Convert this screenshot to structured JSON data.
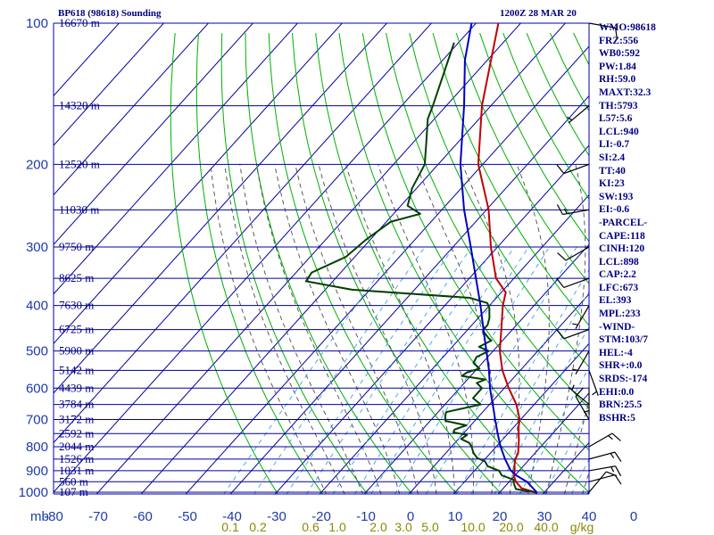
{
  "header": {
    "title": "BP618 (98618) Sounding",
    "time": "1200Z 28 MAR 20"
  },
  "indices": [
    "WMO:98618",
    "FRZ:556",
    "WB0:592",
    "PW:1.84",
    "RH:59.0",
    "MAXT:32.3",
    "TH:5793",
    "L57:5.6",
    "LCL:940",
    "LI:-0.7",
    "SI:2.4",
    "TT:40",
    "KI:23",
    "SW:193",
    "EI:-0.6",
    "-PARCEL-",
    "CAPE:118",
    "CINH:120",
    "LCL:898",
    "CAP:2.2",
    "LFC:673",
    "EL:393",
    "MPL:233",
    "-WIND-",
    "STM:103/7",
    "HEL:-4",
    "SHR+:0.0",
    "SRDS:-174",
    "EHI:0.0",
    "BRN:25.5",
    "BSHR:5"
  ],
  "colors": {
    "isobar": "#0000a0",
    "isotherm": "#0000a0",
    "dry_adiabat": "#00b000",
    "moist_adiabat": "#4a4a4a",
    "mixing_ratio": "#3aa0e0",
    "temperature": "#c00000",
    "dewpoint": "#004000",
    "parcel": "#0000c0",
    "wind_barb": "#000000",
    "axis_text": "#1f3aa8",
    "height_text": "#000080",
    "mixing_ratio_text": "#8a8a00"
  },
  "chart_data": {
    "type": "line",
    "title": "",
    "xlabel": "",
    "ylabel": "mb",
    "x_ticks": [
      "-80",
      "-70",
      "-60",
      "-50",
      "-40",
      "-30",
      "-20",
      "-10",
      "0",
      "10",
      "20",
      "30",
      "40",
      "0"
    ],
    "xlim": [
      -80,
      40
    ],
    "y_ticks": [
      "100",
      "200",
      "300",
      "400",
      "500",
      "600",
      "700",
      "800",
      "900",
      "1000"
    ],
    "ylim": [
      1000,
      100
    ],
    "y_scale": "log",
    "grid": true,
    "height_labels": [
      {
        "p": 100,
        "text": "16670 m"
      },
      {
        "p": 150,
        "text": "14320 m"
      },
      {
        "p": 200,
        "text": "12520 m"
      },
      {
        "p": 250,
        "text": "11030 m"
      },
      {
        "p": 300,
        "text": "9750 m"
      },
      {
        "p": 350,
        "text": "8625 m"
      },
      {
        "p": 400,
        "text": "7630 m"
      },
      {
        "p": 450,
        "text": "6725 m"
      },
      {
        "p": 500,
        "text": "5900 m"
      },
      {
        "p": 550,
        "text": "5142 m"
      },
      {
        "p": 600,
        "text": "4439 m"
      },
      {
        "p": 650,
        "text": "3784 m"
      },
      {
        "p": 700,
        "text": "3172 m"
      },
      {
        "p": 750,
        "text": "2592 m"
      },
      {
        "p": 800,
        "text": "2044 m"
      },
      {
        "p": 850,
        "text": "1526 m"
      },
      {
        "p": 900,
        "text": "1031 m"
      },
      {
        "p": 950,
        "text": "560 m"
      },
      {
        "p": 1000,
        "text": "107 m"
      }
    ],
    "mixing_ratio_labels": [
      "0.1",
      "0.2",
      "0.6",
      "1.0",
      "2.0",
      "3.0",
      "5.0",
      "10.0",
      "20.0",
      "40.0",
      "g/kg"
    ],
    "series": [
      {
        "key": "temperature",
        "points": [
          [
            1003,
            28.5
          ],
          [
            980,
            24
          ],
          [
            950,
            21.5
          ],
          [
            925,
            20
          ],
          [
            900,
            19
          ],
          [
            875,
            17.8
          ],
          [
            850,
            16.8
          ],
          [
            825,
            16.2
          ],
          [
            800,
            15
          ],
          [
            775,
            13.8
          ],
          [
            750,
            12.4
          ],
          [
            725,
            11
          ],
          [
            700,
            9.8
          ],
          [
            650,
            6
          ],
          [
            600,
            1
          ],
          [
            550,
            -4
          ],
          [
            500,
            -8.5
          ],
          [
            450,
            -12.5
          ],
          [
            400,
            -17
          ],
          [
            375,
            -19
          ],
          [
            350,
            -24
          ],
          [
            300,
            -31.5
          ],
          [
            250,
            -39.5
          ],
          [
            200,
            -51
          ],
          [
            150,
            -62
          ],
          [
            100,
            -75
          ]
        ]
      },
      {
        "key": "dewpoint",
        "points": [
          [
            1003,
            28.5
          ],
          [
            985,
            23
          ],
          [
            960,
            21.5
          ],
          [
            940,
            20.5
          ],
          [
            920,
            17
          ],
          [
            900,
            15.5
          ],
          [
            880,
            12
          ],
          [
            860,
            10.5
          ],
          [
            845,
            8
          ],
          [
            825,
            6.2
          ],
          [
            800,
            4.5
          ],
          [
            785,
            3.2
          ],
          [
            770,
            0.6
          ],
          [
            755,
            1.1
          ],
          [
            745,
            -2.5
          ],
          [
            735,
            -2.8
          ],
          [
            720,
            -1
          ],
          [
            705,
            -6.5
          ],
          [
            690,
            -7.5
          ],
          [
            675,
            -8.2
          ],
          [
            650,
            -2
          ],
          [
            630,
            -5
          ],
          [
            600,
            -5
          ],
          [
            585,
            -7.2
          ],
          [
            575,
            -6
          ],
          [
            565,
            -12
          ],
          [
            555,
            -11.5
          ],
          [
            545,
            -9.5
          ],
          [
            530,
            -12
          ],
          [
            515,
            -12.5
          ],
          [
            500,
            -11
          ],
          [
            490,
            -14
          ],
          [
            475,
            -12.5
          ],
          [
            470,
            -13.5
          ],
          [
            455,
            -16
          ],
          [
            450,
            -16.5
          ],
          [
            440,
            -16.5
          ],
          [
            425,
            -17.5
          ],
          [
            405,
            -19.5
          ],
          [
            395,
            -21
          ],
          [
            385,
            -26
          ],
          [
            370,
            -54
          ],
          [
            355,
            -66
          ],
          [
            340,
            -66.5
          ],
          [
            315,
            -62
          ],
          [
            290,
            -61
          ],
          [
            265,
            -59
          ],
          [
            255,
            -54
          ],
          [
            245,
            -58.5
          ],
          [
            225,
            -61
          ],
          [
            200,
            -63
          ],
          [
            180,
            -67
          ],
          [
            160,
            -71.5
          ],
          [
            150,
            -73
          ],
          [
            110,
            -81
          ]
        ]
      },
      {
        "key": "parcel",
        "points": [
          [
            1003,
            28.5
          ],
          [
            950,
            24
          ],
          [
            920,
            20.2
          ],
          [
            898,
            18
          ],
          [
            850,
            14.5
          ],
          [
            800,
            11
          ],
          [
            750,
            7.7
          ],
          [
            700,
            4.3
          ],
          [
            673,
            2.4
          ],
          [
            600,
            -3.2
          ],
          [
            550,
            -7
          ],
          [
            500,
            -11.5
          ],
          [
            450,
            -16.5
          ],
          [
            400,
            -22
          ],
          [
            350,
            -28.5
          ],
          [
            300,
            -36
          ],
          [
            250,
            -45
          ],
          [
            200,
            -55
          ],
          [
            150,
            -66
          ],
          [
            120,
            -75
          ],
          [
            100,
            -81
          ]
        ]
      }
    ],
    "wind_barbs": [
      {
        "p": 1000,
        "dir": 40,
        "spd": 10
      },
      {
        "p": 950,
        "dir": 75,
        "spd": 10
      },
      {
        "p": 900,
        "dir": 80,
        "spd": 15
      },
      {
        "p": 850,
        "dir": 75,
        "spd": 15
      },
      {
        "p": 800,
        "dir": 60,
        "spd": 15
      },
      {
        "p": 700,
        "dir": 330,
        "spd": 10
      },
      {
        "p": 650,
        "dir": 310,
        "spd": 5
      },
      {
        "p": 600,
        "dir": 180,
        "spd": 5
      },
      {
        "p": 550,
        "dir": 160,
        "spd": 5
      },
      {
        "p": 500,
        "dir": 210,
        "spd": 5
      },
      {
        "p": 450,
        "dir": 250,
        "spd": 10
      },
      {
        "p": 400,
        "dir": 210,
        "spd": 5
      },
      {
        "p": 350,
        "dir": 250,
        "spd": 10
      },
      {
        "p": 300,
        "dir": 240,
        "spd": 10
      },
      {
        "p": 250,
        "dir": 260,
        "spd": 15
      },
      {
        "p": 200,
        "dir": 250,
        "spd": 10
      },
      {
        "p": 150,
        "dir": 230,
        "spd": 5
      },
      {
        "p": 100,
        "dir": 100,
        "spd": 10
      }
    ]
  }
}
